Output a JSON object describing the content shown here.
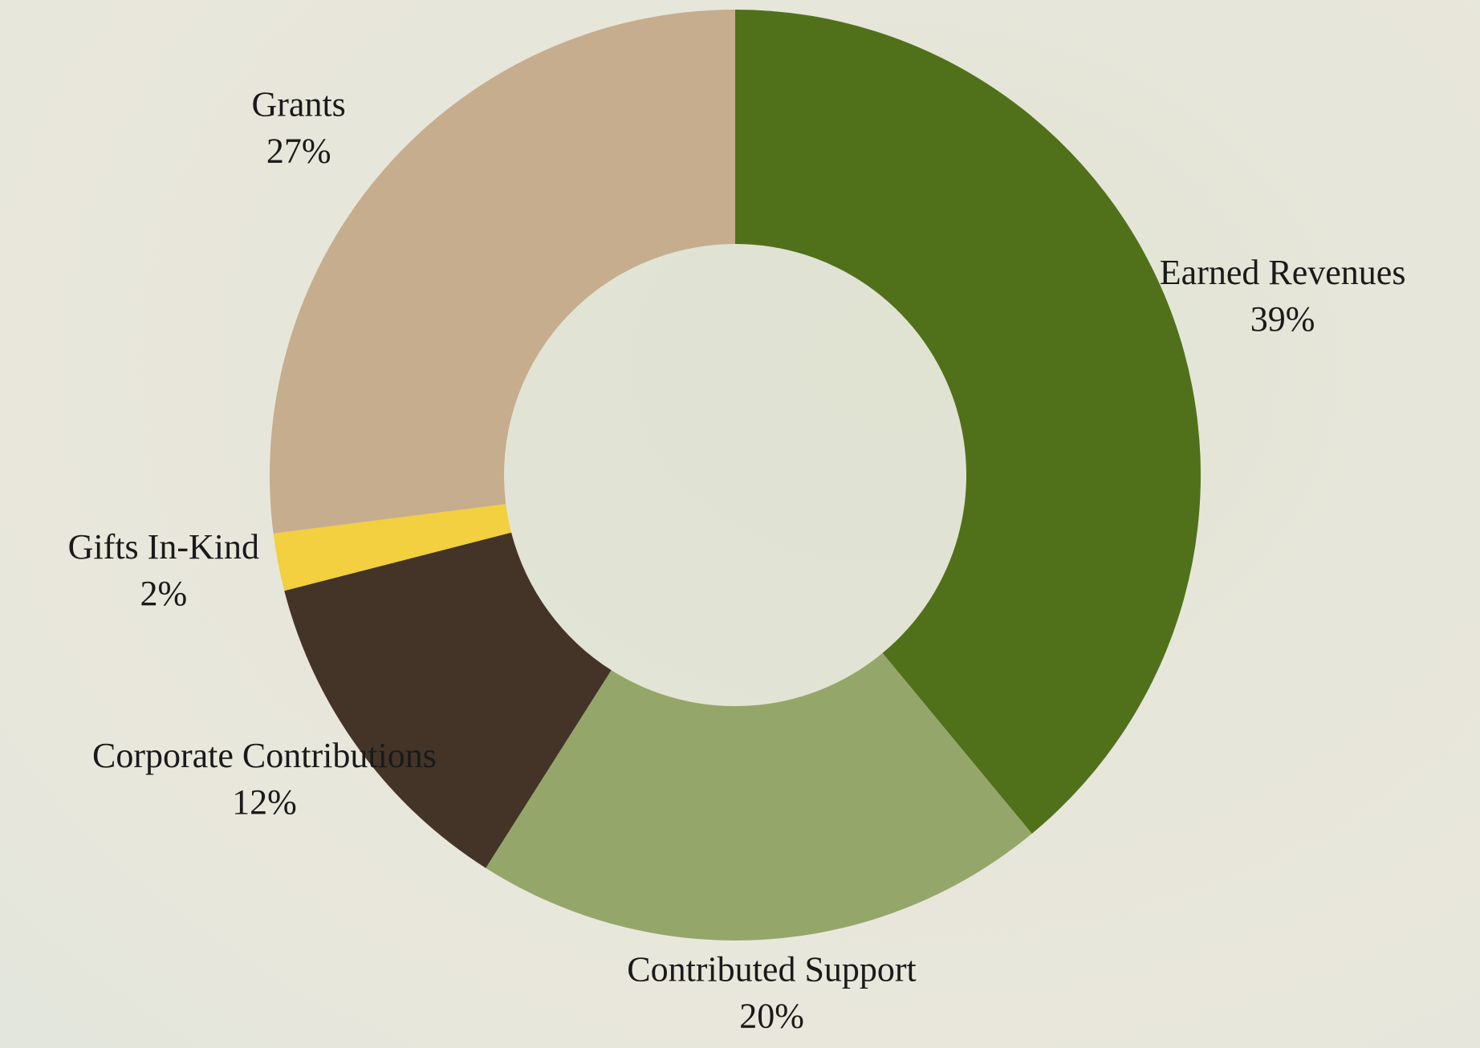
{
  "chart_data": {
    "type": "pie",
    "categories": [
      "Earned Revenues",
      "Contributed Support",
      "Corporate Contributions",
      "Gifts In-Kind",
      "Grants"
    ],
    "values": [
      39,
      20,
      12,
      2,
      27
    ],
    "value_labels": [
      "39%",
      "20%",
      "12%",
      "2%",
      "27%"
    ],
    "colors": [
      "#50711a",
      "#95a66a",
      "#443428",
      "#f2d03f",
      "#c6ad8d"
    ]
  }
}
